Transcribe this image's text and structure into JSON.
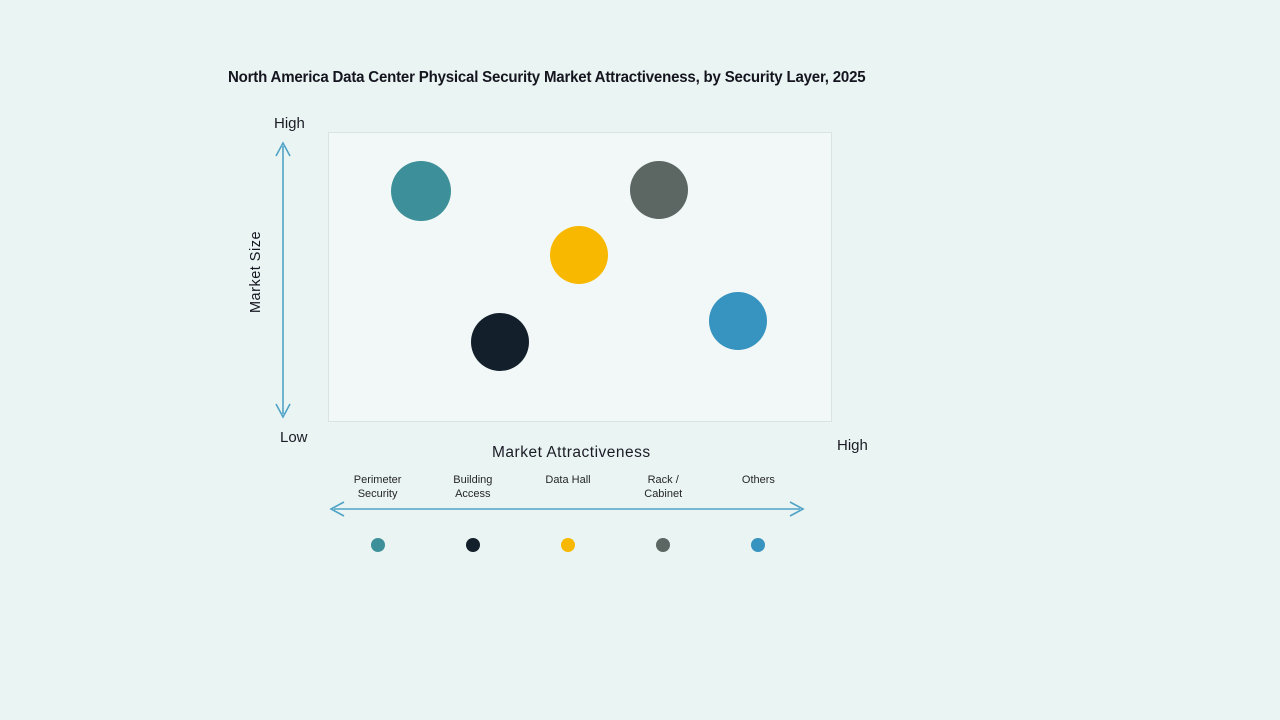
{
  "title": "North America Data Center Physical Security Market Attractiveness,  by Security Layer, 2025",
  "colors": {
    "background": "#eaf4f3",
    "plot_background": "#f1f8f7",
    "plot_border": "#d9e3e2",
    "axis_arrow": "#4fa3c6",
    "text": "#15151f"
  },
  "y_axis": {
    "label": "Market Size",
    "top_label": "High",
    "bottom_label": "Low"
  },
  "x_axis": {
    "label": "Market Attractiveness",
    "right_label": "High"
  },
  "chart_data": {
    "type": "scatter",
    "title": "North America Data Center Physical Security Market Attractiveness, by Security Layer, 2025",
    "xlabel": "Market Attractiveness",
    "ylabel": "Market Size",
    "x_range_labels": [
      "Low",
      "High"
    ],
    "y_range_labels": [
      "Low",
      "High"
    ],
    "xlim": [
      0,
      100
    ],
    "ylim": [
      0,
      100
    ],
    "grid": false,
    "legend_position": "bottom",
    "points": [
      {
        "label": "Perimeter Security",
        "color": "#3d9099",
        "x": 18.5,
        "y": 79.7,
        "r": 30
      },
      {
        "label": "Building Access",
        "color": "#131f2b",
        "x": 34.1,
        "y": 27.6,
        "r": 29
      },
      {
        "label": "Data Hall",
        "color": "#f8b800",
        "x": 49.8,
        "y": 57.6,
        "r": 29
      },
      {
        "label": "Rack / Cabinet",
        "color": "#5c6663",
        "x": 65.7,
        "y": 80.0,
        "r": 29
      },
      {
        "label": "Others",
        "color": "#3793bf",
        "x": 81.3,
        "y": 34.8,
        "r": 29
      }
    ],
    "legend": [
      {
        "label": "Perimeter\nSecurity",
        "color": "#3d9099"
      },
      {
        "label": "Building\nAccess",
        "color": "#131f2b"
      },
      {
        "label": "Data Hall",
        "color": "#f8b800"
      },
      {
        "label": "Rack /\nCabinet",
        "color": "#5c6663"
      },
      {
        "label": "Others",
        "color": "#3793bf"
      }
    ]
  }
}
